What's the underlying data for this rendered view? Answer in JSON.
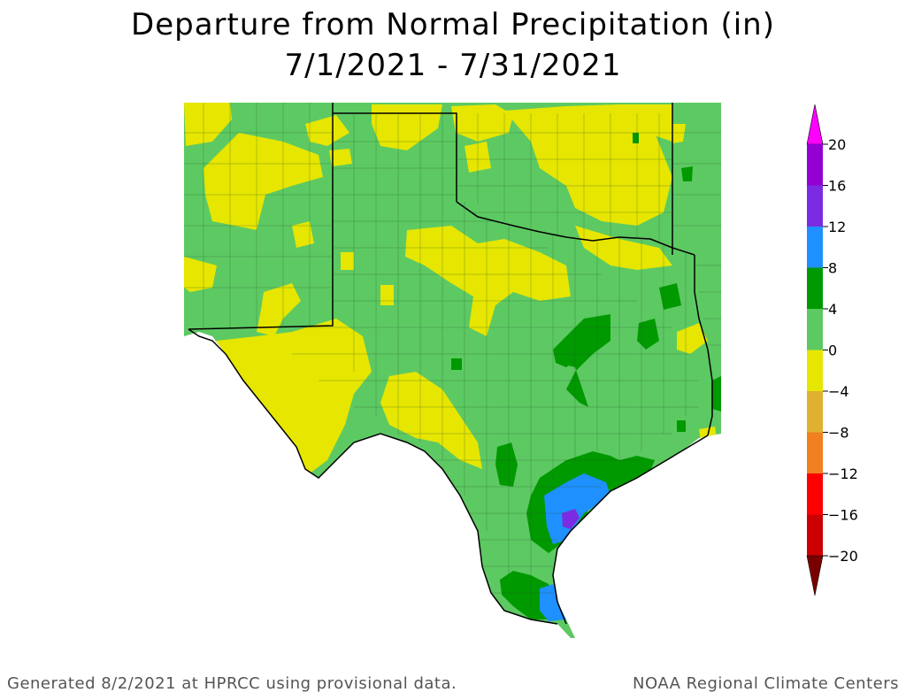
{
  "title": {
    "line1": "Departure from Normal Precipitation (in)",
    "line2": "7/1/2021 - 7/31/2021"
  },
  "legend": {
    "units": "in",
    "bins": [
      {
        "from": 16,
        "to": 20,
        "color": "#9400d3"
      },
      {
        "from": 12,
        "to": 16,
        "color": "#7b2be2"
      },
      {
        "from": 8,
        "to": 12,
        "color": "#1e90ff"
      },
      {
        "from": 4,
        "to": 8,
        "color": "#009900"
      },
      {
        "from": 0,
        "to": 4,
        "color": "#5dc963"
      },
      {
        "from": -4,
        "to": 0,
        "color": "#e6e600"
      },
      {
        "from": -8,
        "to": -4,
        "color": "#e0b030"
      },
      {
        "from": -12,
        "to": -8,
        "color": "#f08020"
      },
      {
        "from": -16,
        "to": -12,
        "color": "#ff0000"
      },
      {
        "from": -20,
        "to": -16,
        "color": "#cc0000"
      }
    ],
    "top_arrow_color": "#ff00ff",
    "bottom_arrow_color": "#7a0000",
    "tick_labels": [
      "20",
      "16",
      "12",
      "8",
      "4",
      "0",
      "−4",
      "−8",
      "−12",
      "−16",
      "−20"
    ]
  },
  "map": {
    "region": "Texas",
    "colors": {
      "wet_4_8": "#009900",
      "wet_0_4": "#5dc963",
      "dry_0_4": "#e6e600",
      "wet_8_12": "#1e90ff",
      "wet_12_16": "#7b2be2",
      "water": "#ffffff",
      "outline": "#000000"
    }
  },
  "footer": {
    "left": "Generated 8/2/2021 at HPRCC using provisional data.",
    "right": "NOAA Regional Climate Centers"
  }
}
